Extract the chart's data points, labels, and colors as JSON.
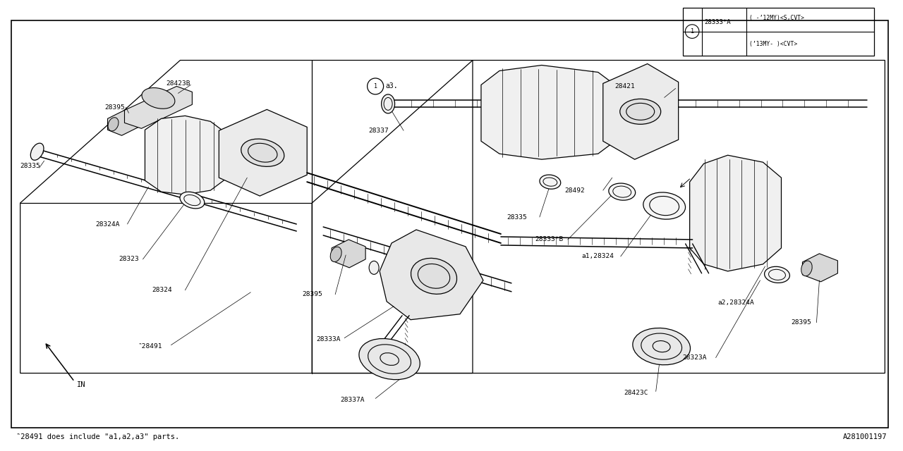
{
  "bg_color": "#ffffff",
  "line_color": "#000000",
  "fig_width": 12.8,
  "fig_height": 6.4,
  "footnote": "‶28491 does include \"a1,a2,a3\" parts.",
  "part_id": "A281001197",
  "legend": {
    "num": "1",
    "part": "28333*A",
    "row1": "( -’12MY)<S,CVT>",
    "row2": "(’13MY- )<CVT>"
  }
}
